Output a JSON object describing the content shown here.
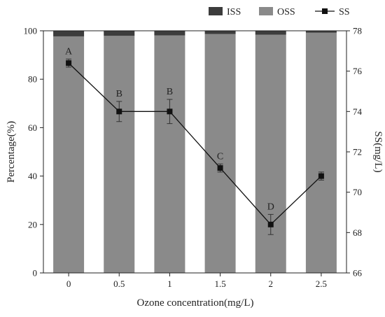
{
  "chart_data": {
    "type": "bar",
    "x": [
      "0",
      "0.5",
      "1",
      "1.5",
      "2",
      "2.5"
    ],
    "xlabel": "Ozone concentration(mg/L)",
    "ylabel": "Percentage(%)",
    "y2label": "SS(mg/L)",
    "ylim": [
      0,
      100
    ],
    "y2lim": [
      66,
      78
    ],
    "yticks": [
      "0",
      "20",
      "40",
      "60",
      "80",
      "100"
    ],
    "y2ticks": [
      "66",
      "68",
      "70",
      "72",
      "74",
      "76",
      "78"
    ],
    "stacked": true,
    "grid": false,
    "legend_position": "top-right",
    "series": [
      {
        "name": "ISS",
        "kind": "bar",
        "axis": "left",
        "color": "#3c3c3c",
        "values": [
          2.3,
          2.1,
          1.9,
          1.3,
          1.6,
          0.8
        ]
      },
      {
        "name": "OSS",
        "kind": "bar",
        "axis": "left",
        "color": "#8a8a8a",
        "values": [
          97.7,
          97.9,
          98.1,
          98.7,
          98.4,
          99.2
        ]
      },
      {
        "name": "SS",
        "kind": "line",
        "marker": "square",
        "axis": "right",
        "color": "#111111",
        "values": [
          76.4,
          74.0,
          74.0,
          71.2,
          68.4,
          70.8
        ],
        "error": [
          0.2,
          0.5,
          0.6,
          0.2,
          0.5,
          0.2
        ],
        "labels": [
          "A",
          "B",
          "B",
          "C",
          "D",
          ""
        ]
      }
    ]
  }
}
